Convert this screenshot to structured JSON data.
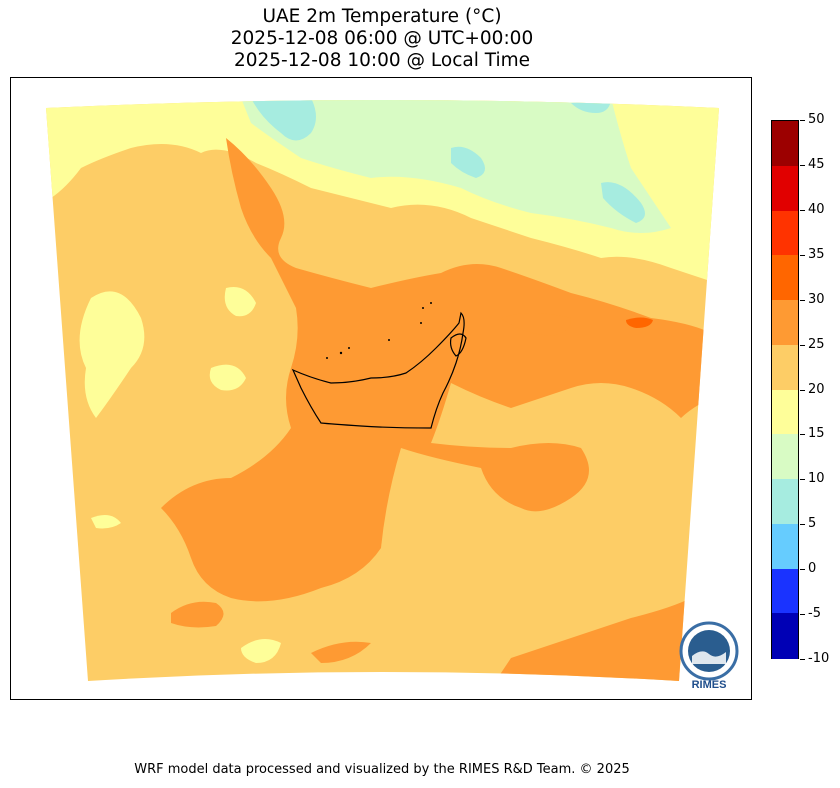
{
  "title": {
    "line1": "UAE 2m Temperature (°C)",
    "line2": "2025-12-08 06:00 @ UTC+00:00",
    "line3": "2025-12-08 10:00 @ Local Time"
  },
  "colorbar": {
    "levels": [
      "50",
      "45",
      "40",
      "35",
      "30",
      "25",
      "20",
      "15",
      "10",
      "5",
      "0",
      "-5",
      "-10"
    ],
    "colors": [
      "#9c0000",
      "#e10000",
      "#ff3300",
      "#ff6600",
      "#fe9a33",
      "#fdcd66",
      "#fefe99",
      "#d8fbc4",
      "#a6ece0",
      "#66ccfe",
      "#1a33ff",
      "#0000b5"
    ]
  },
  "logo": {
    "text": "RIMES"
  },
  "footer": {
    "text": "WRF model data processed and visualized by the RIMES R&D Team. © 2025"
  }
}
